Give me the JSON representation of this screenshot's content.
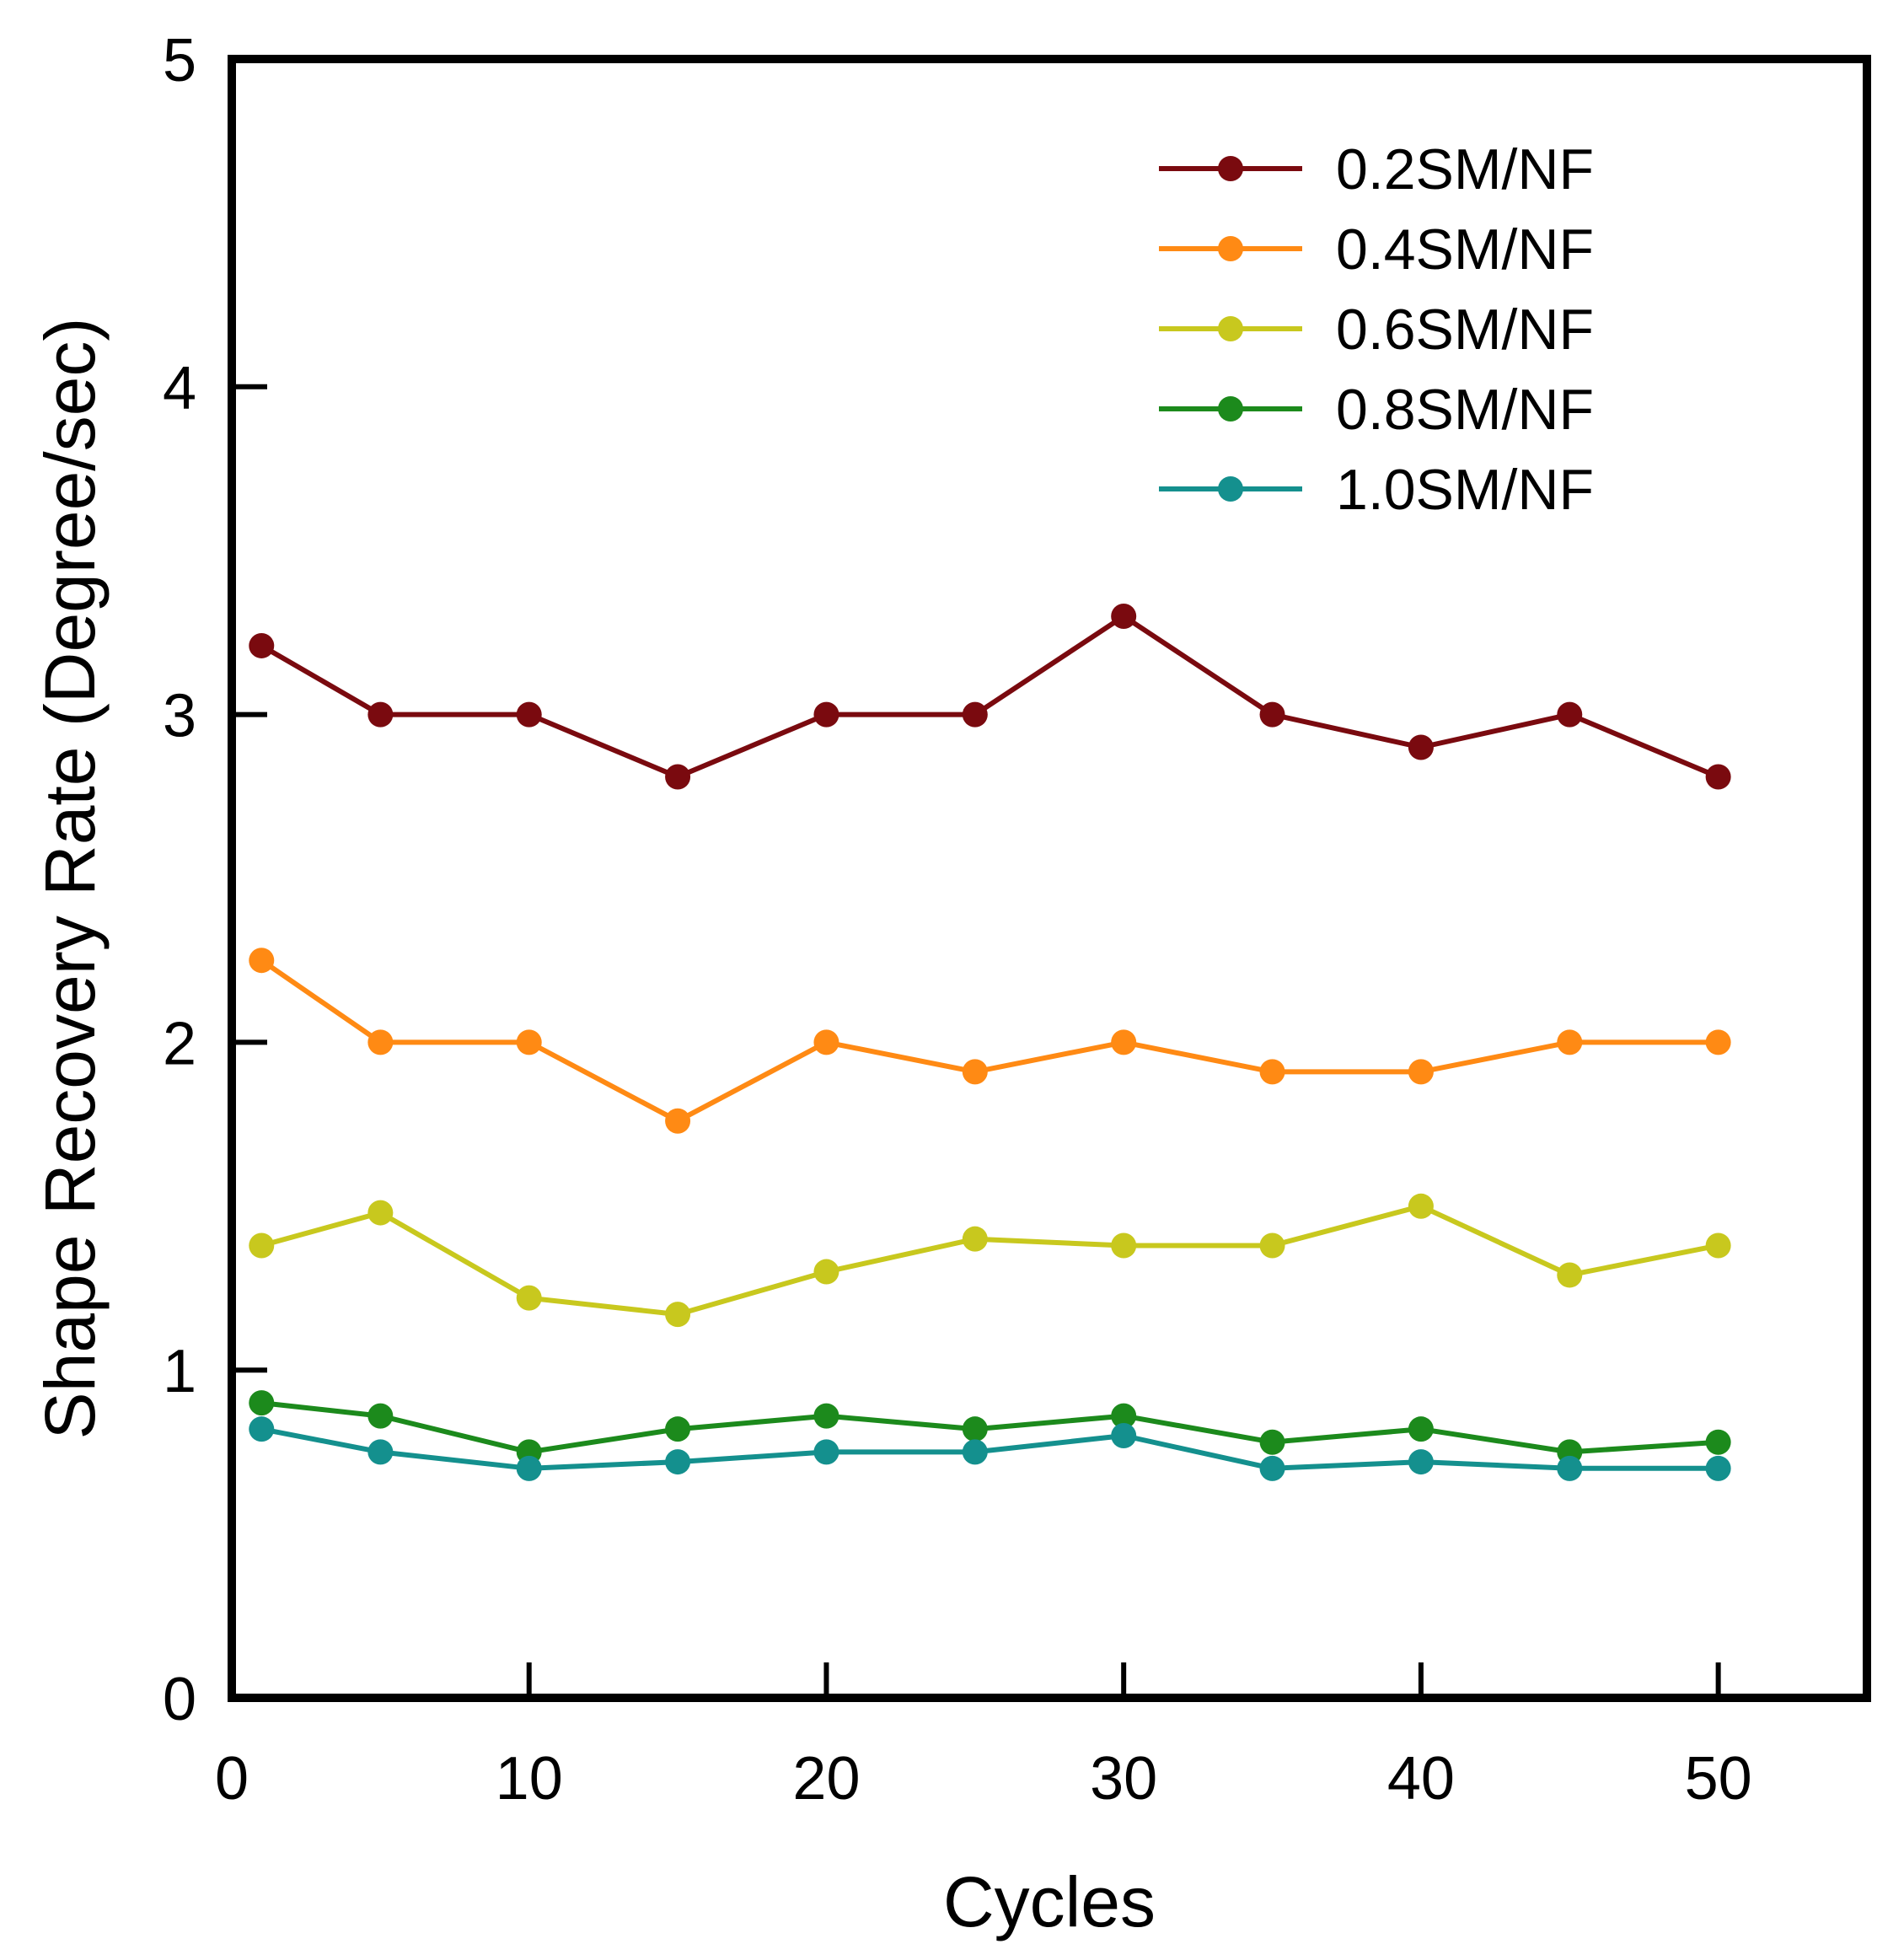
{
  "chart_data": {
    "type": "line",
    "title": "",
    "xlabel": "Cycles",
    "ylabel": "Shape Recovery Rate (Degree/sec)",
    "xlim": [
      0,
      55
    ],
    "ylim": [
      0,
      5
    ],
    "xticks": [
      0,
      10,
      20,
      30,
      40,
      50
    ],
    "yticks": [
      0,
      1,
      2,
      3,
      4,
      5
    ],
    "grid": false,
    "legend_position": "top-right",
    "x": [
      1,
      5,
      10,
      15,
      20,
      25,
      30,
      35,
      40,
      45,
      50
    ],
    "series": [
      {
        "name": "0.2SM/NF",
        "color": "#7a0a0f",
        "values": [
          3.21,
          3.0,
          3.0,
          2.81,
          3.0,
          3.0,
          3.3,
          3.0,
          2.9,
          3.0,
          2.81
        ]
      },
      {
        "name": "0.4SM/NF",
        "color": "#ff8a14",
        "values": [
          2.25,
          2.0,
          2.0,
          1.76,
          2.0,
          1.91,
          2.0,
          1.91,
          1.91,
          2.0,
          2.0
        ]
      },
      {
        "name": "0.6SM/NF",
        "color": "#c8c81e",
        "values": [
          1.38,
          1.48,
          1.22,
          1.17,
          1.3,
          1.4,
          1.38,
          1.38,
          1.5,
          1.29,
          1.38
        ]
      },
      {
        "name": "0.8SM/NF",
        "color": "#1c8a1c",
        "values": [
          0.9,
          0.86,
          0.75,
          0.82,
          0.86,
          0.82,
          0.86,
          0.78,
          0.82,
          0.75,
          0.78
        ]
      },
      {
        "name": "1.0SM/NF",
        "color": "#14908e",
        "values": [
          0.82,
          0.75,
          0.7,
          0.72,
          0.75,
          0.75,
          0.8,
          0.7,
          0.72,
          0.7,
          0.7
        ]
      }
    ]
  }
}
